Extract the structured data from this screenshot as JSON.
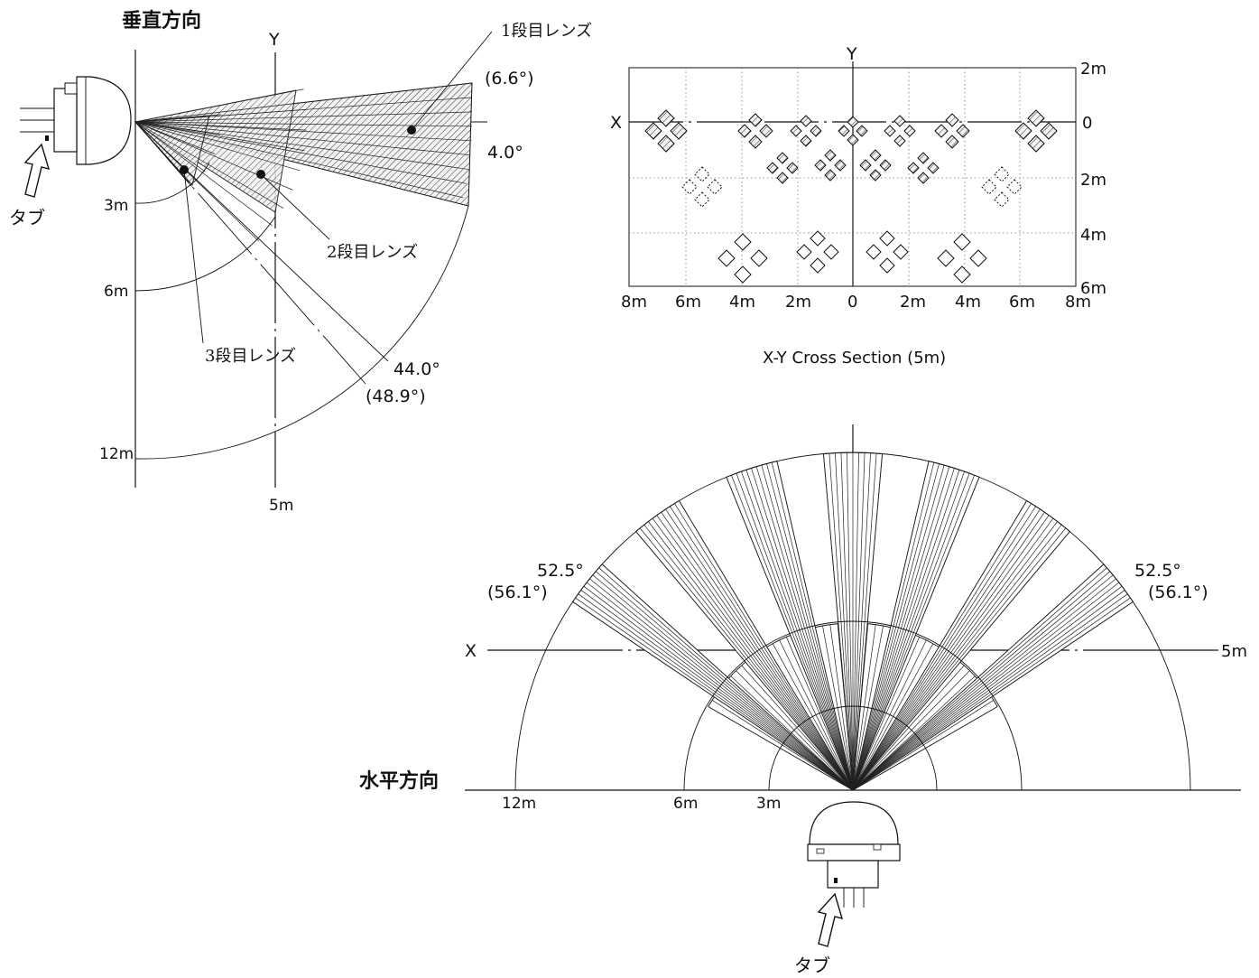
{
  "vertical": {
    "title": "垂直方向",
    "y_axis": "Y",
    "y_label": "5m",
    "radii": [
      "3m",
      "6m",
      "12m"
    ],
    "angles": {
      "top": "(6.6°)",
      "lens1": "4.0°",
      "lens2": "44.0°",
      "lens3": "(48.9°)"
    },
    "lens_labels": [
      "1段目レンズ",
      "2段目レンズ",
      "3段目レンズ"
    ],
    "tab": "タブ"
  },
  "cross_section": {
    "title": "X-Y Cross Section (5m)",
    "x_axis": "X",
    "y_axis": "Y",
    "x_ticks": [
      "8m",
      "6m",
      "4m",
      "2m",
      "0",
      "2m",
      "4m",
      "6m",
      "8m"
    ],
    "y_ticks": [
      "2m",
      "0",
      "2m",
      "4m",
      "6m"
    ]
  },
  "horizontal": {
    "title": "水平方向",
    "x_axis": "X",
    "x_label": "5m",
    "radii": [
      "12m",
      "6m",
      "3m"
    ],
    "angle_left": "52.5°",
    "angle_left_paren": "(56.1°)",
    "angle_right": "52.5°",
    "angle_right_paren": "(56.1°)",
    "tab": "タブ"
  }
}
